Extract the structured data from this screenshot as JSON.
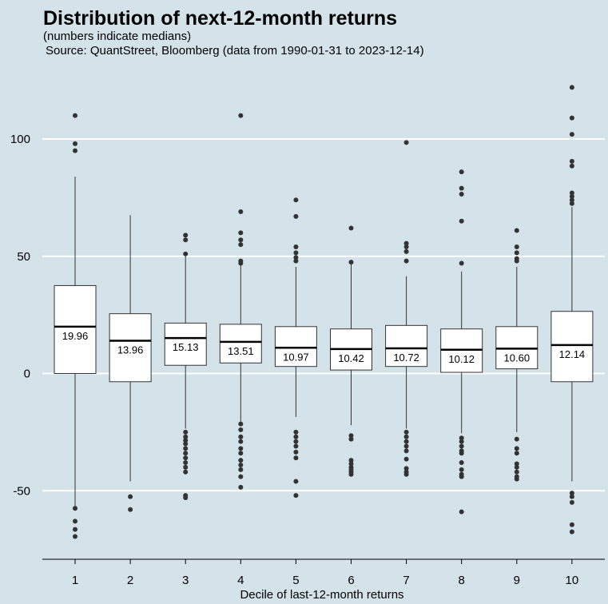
{
  "chart_data": {
    "type": "box",
    "title": "Distribution of next-12-month returns",
    "subtitle": "(numbers indicate medians)",
    "source": "Source: QuantStreet, Bloomberg (data from 1990-01-31 to 2023-12-14)",
    "xlabel": "Decile of last-12-month returns",
    "ylabel": "",
    "categories": [
      "1",
      "2",
      "3",
      "4",
      "5",
      "6",
      "7",
      "8",
      "9",
      "10"
    ],
    "yticks": [
      100,
      50,
      0,
      -50
    ],
    "ytick_labels": [
      "100",
      "50",
      "0",
      "-50"
    ],
    "ylim": [
      -79,
      127
    ],
    "grid": "horizontal",
    "legend": "none",
    "boxes": [
      {
        "q1": 0,
        "median": 19.96,
        "q3": 37.5,
        "whisker_low": -57,
        "whisker_high": 84,
        "median_label": "19.96",
        "outliers": [
          110,
          98,
          95,
          -57.5,
          -63,
          -66.5,
          -69.5
        ]
      },
      {
        "q1": -3.5,
        "median": 13.96,
        "q3": 25.5,
        "whisker_low": -46,
        "whisker_high": 67.5,
        "median_label": "13.96",
        "outliers": [
          -52.5,
          -58
        ]
      },
      {
        "q1": 3.5,
        "median": 15.13,
        "q3": 21.5,
        "whisker_low": -23.5,
        "whisker_high": 50,
        "median_label": "15.13",
        "outliers": [
          59,
          57,
          51,
          -25,
          -27,
          -28.5,
          -30,
          -32,
          -34,
          -36,
          -38,
          -40,
          -42,
          -52,
          -53
        ]
      },
      {
        "q1": 4.5,
        "median": 13.51,
        "q3": 21,
        "whisker_low": -20.5,
        "whisker_high": 47,
        "median_label": "13.51",
        "outliers": [
          110,
          69,
          60,
          57,
          55,
          48,
          47,
          -21.5,
          -24,
          -27,
          -29,
          -32,
          -34,
          -37,
          -39,
          -41,
          -44,
          -48.5
        ]
      },
      {
        "q1": 3,
        "median": 10.97,
        "q3": 20,
        "whisker_low": -18.5,
        "whisker_high": 45.5,
        "median_label": "10.97",
        "outliers": [
          74,
          67,
          54,
          51.5,
          49.5,
          48,
          -25,
          -27,
          -29,
          -31,
          -33.5,
          -36,
          -46,
          -52
        ]
      },
      {
        "q1": 1.5,
        "median": 10.42,
        "q3": 19,
        "whisker_low": -22,
        "whisker_high": 47,
        "median_label": "10.42",
        "outliers": [
          62,
          47.5,
          -26.5,
          -28,
          -37,
          -38.5,
          -40,
          -41,
          -42,
          -43
        ]
      },
      {
        "q1": 3,
        "median": 10.72,
        "q3": 20.5,
        "whisker_low": -23.5,
        "whisker_high": 41.5,
        "median_label": "10.72",
        "outliers": [
          98.5,
          55.5,
          54,
          52,
          48,
          -25,
          -27,
          -29,
          -31,
          -33,
          -36.5,
          -40.5,
          -42,
          -43
        ]
      },
      {
        "q1": 0.5,
        "median": 10.12,
        "q3": 19,
        "whisker_low": -25.5,
        "whisker_high": 43.5,
        "median_label": "10.12",
        "outliers": [
          86,
          79,
          76.5,
          65,
          47,
          -27.5,
          -29,
          -31,
          -33,
          -34,
          -38,
          -41,
          -43,
          -44,
          -59
        ]
      },
      {
        "q1": 2,
        "median": 10.6,
        "q3": 20,
        "whisker_low": -25,
        "whisker_high": 45.5,
        "median_label": "10.60",
        "outliers": [
          61,
          54,
          51.5,
          49,
          48,
          -28,
          -32,
          -34,
          -38.5,
          -40,
          -42,
          -44,
          -45
        ]
      },
      {
        "q1": -3.5,
        "median": 12.14,
        "q3": 26.5,
        "whisker_low": -46,
        "whisker_high": 71,
        "median_label": "12.14",
        "outliers": [
          122,
          109,
          102,
          90.5,
          88.5,
          77,
          75.5,
          74,
          72.5,
          -51,
          -52.5,
          -55,
          -64.5,
          -67.5
        ]
      }
    ]
  }
}
